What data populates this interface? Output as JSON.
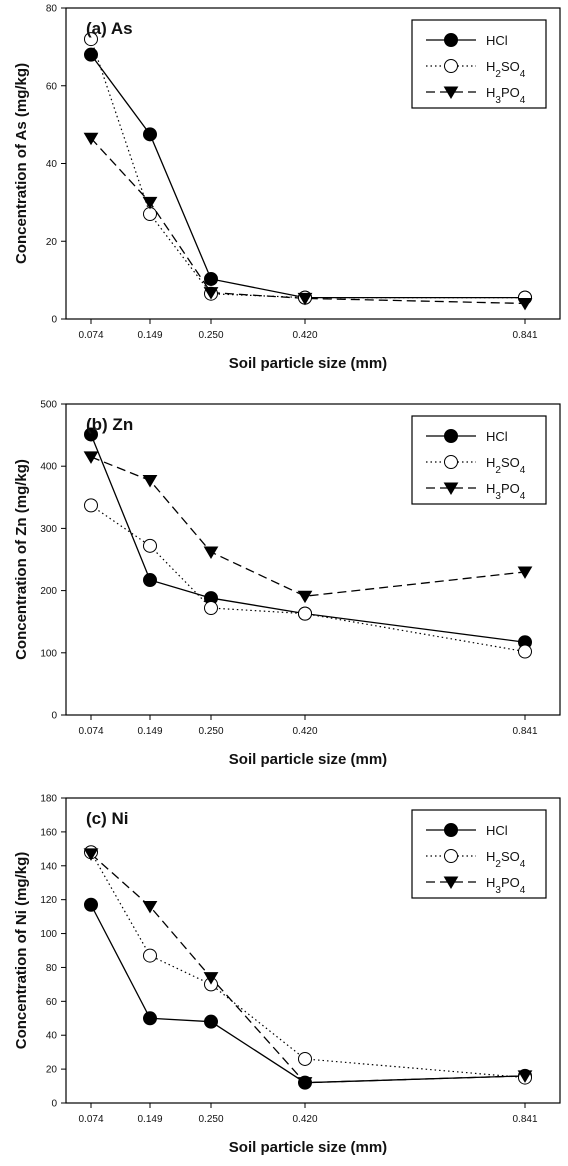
{
  "chart_data": [
    {
      "type": "line",
      "title": "(a) As",
      "xlabel": "Soil particle size (mm)",
      "ylabel": "Concentration of As (mg/kg)",
      "x": [
        0.074,
        0.149,
        0.25,
        0.42,
        0.841
      ],
      "x_tick_labels": [
        "0.074",
        "0.149",
        "0.250",
        "0.420",
        "0.841"
      ],
      "ylim": [
        0,
        80
      ],
      "y_ticks": [
        0,
        20,
        40,
        60,
        80
      ],
      "legend_position": "top-right",
      "series": [
        {
          "name": "HCl",
          "marker": "filled-circle",
          "line": "solid",
          "values": [
            68,
            47.5,
            10.3,
            5.5,
            5.5
          ]
        },
        {
          "name": "H2SO4",
          "marker": "open-circle",
          "line": "dotted",
          "values": [
            72,
            27,
            6.5,
            5.5,
            5.5
          ]
        },
        {
          "name": "H3PO4",
          "marker": "filled-triangle-down",
          "line": "dashed",
          "values": [
            46.5,
            30,
            6.8,
            5.3,
            4
          ]
        }
      ]
    },
    {
      "type": "line",
      "title": "(b) Zn",
      "xlabel": "Soil particle size (mm)",
      "ylabel": "Concentration of Zn (mg/kg)",
      "x": [
        0.074,
        0.149,
        0.25,
        0.42,
        0.841
      ],
      "x_tick_labels": [
        "0.074",
        "0.149",
        "0.250",
        "0.420",
        "0.841"
      ],
      "ylim": [
        0,
        500
      ],
      "y_ticks": [
        0,
        100,
        200,
        300,
        400,
        500
      ],
      "legend_position": "top-right",
      "series": [
        {
          "name": "HCl",
          "marker": "filled-circle",
          "line": "solid",
          "values": [
            451,
            217,
            188,
            163,
            117
          ]
        },
        {
          "name": "H2SO4",
          "marker": "open-circle",
          "line": "dotted",
          "values": [
            337,
            272,
            172,
            163,
            102
          ]
        },
        {
          "name": "H3PO4",
          "marker": "filled-triangle-down",
          "line": "dashed",
          "values": [
            415,
            377,
            262,
            191,
            230
          ]
        }
      ]
    },
    {
      "type": "line",
      "title": "(c) Ni",
      "xlabel": "Soil particle size (mm)",
      "ylabel": "Concentration of Ni (mg/kg)",
      "x": [
        0.074,
        0.149,
        0.25,
        0.42,
        0.841
      ],
      "x_tick_labels": [
        "0.074",
        "0.149",
        "0.250",
        "0.420",
        "0.841"
      ],
      "ylim": [
        0,
        180
      ],
      "y_ticks": [
        0,
        20,
        40,
        60,
        80,
        100,
        120,
        140,
        160,
        180
      ],
      "legend_position": "top-right",
      "series": [
        {
          "name": "HCl",
          "marker": "filled-circle",
          "line": "solid",
          "values": [
            117,
            50,
            48,
            12,
            16
          ]
        },
        {
          "name": "H2SO4",
          "marker": "open-circle",
          "line": "dotted",
          "values": [
            148,
            87,
            70,
            26,
            15
          ]
        },
        {
          "name": "H3PO4",
          "marker": "filled-triangle-down",
          "line": "dashed",
          "values": [
            147,
            116,
            74,
            12,
            16
          ]
        }
      ]
    }
  ]
}
